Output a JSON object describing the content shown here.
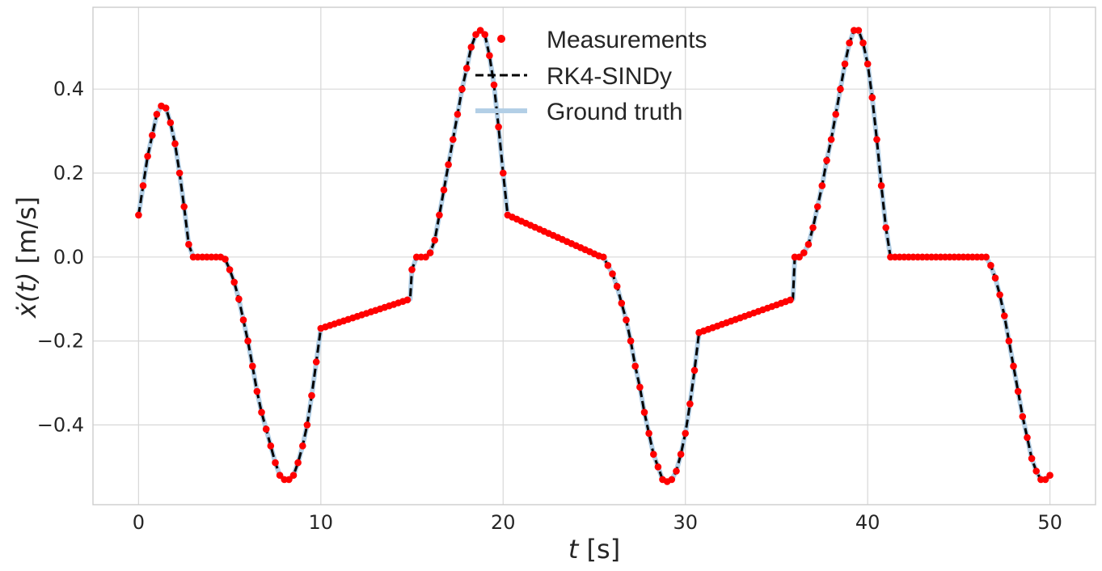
{
  "chart_data": {
    "type": "line",
    "title": "",
    "xlabel": "t [s]",
    "xlabel_parts": {
      "var": "t",
      "unit": " [s]"
    },
    "ylabel": "ẋ(t) [m/s]",
    "ylabel_parts": {
      "var": "ẋ",
      "arg": "(t)",
      "unit": " [m/s]"
    },
    "xlim": [
      -2.5,
      52.5
    ],
    "ylim": [
      -0.59,
      0.595
    ],
    "xticks": [
      0,
      10,
      20,
      30,
      40,
      50
    ],
    "xtick_labels": [
      "0",
      "10",
      "20",
      "30",
      "40",
      "50"
    ],
    "yticks": [
      -0.4,
      -0.2,
      0.0,
      0.2,
      0.4
    ],
    "ytick_labels": [
      "−0.4",
      "−0.2",
      "0.0",
      "0.2",
      "0.4"
    ],
    "grid": true,
    "legend_position": "top-center",
    "series": [
      {
        "name": "Measurements",
        "style": "markers",
        "color": "#ff0000",
        "sample_step": 0.25
      },
      {
        "name": "RK4-SINDy",
        "style": "dashed-line",
        "color": "#000000"
      },
      {
        "name": "Ground truth",
        "style": "solid-line",
        "color": "#b3cfe6"
      }
    ],
    "curve_x": [
      0,
      0.25,
      0.5,
      0.75,
      1.0,
      1.25,
      1.5,
      1.75,
      2.0,
      2.25,
      2.5,
      2.75,
      3.0,
      4.6,
      4.75,
      5.0,
      5.25,
      5.5,
      5.75,
      6.0,
      6.25,
      6.5,
      6.75,
      7.0,
      7.25,
      7.5,
      7.75,
      8.0,
      8.25,
      8.5,
      8.75,
      9.0,
      9.25,
      9.5,
      9.75,
      10.0,
      14.9,
      15.0,
      15.25,
      15.5,
      15.75,
      16.0,
      16.25,
      16.5,
      16.75,
      17.0,
      17.25,
      17.5,
      17.75,
      18.0,
      18.25,
      18.5,
      18.75,
      19.0,
      19.25,
      19.5,
      19.75,
      20.0,
      20.25,
      25.4,
      25.5,
      25.75,
      26.0,
      26.25,
      26.5,
      26.75,
      27.0,
      27.25,
      27.5,
      27.75,
      28.0,
      28.25,
      28.5,
      28.75,
      29.0,
      29.25,
      29.5,
      29.75,
      30.0,
      30.25,
      30.5,
      30.75,
      35.9,
      36.0,
      36.25,
      36.5,
      36.75,
      37.0,
      37.25,
      37.5,
      37.75,
      38.0,
      38.25,
      38.5,
      38.75,
      39.0,
      39.25,
      39.5,
      39.75,
      40.0,
      40.25,
      40.5,
      40.75,
      41.0,
      41.25,
      46.3,
      46.5,
      46.75,
      47.0,
      47.25,
      47.5,
      47.75,
      48.0,
      48.25,
      48.5,
      48.75,
      49.0,
      49.25,
      49.5,
      49.75,
      50.0
    ],
    "curve_y": [
      0.1,
      0.17,
      0.24,
      0.29,
      0.34,
      0.36,
      0.355,
      0.32,
      0.27,
      0.2,
      0.12,
      0.03,
      0.0,
      0.0,
      -0.005,
      -0.03,
      -0.06,
      -0.1,
      -0.15,
      -0.2,
      -0.26,
      -0.32,
      -0.37,
      -0.41,
      -0.45,
      -0.49,
      -0.52,
      -0.53,
      -0.53,
      -0.52,
      -0.49,
      -0.45,
      -0.4,
      -0.33,
      -0.25,
      -0.17,
      -0.1,
      -0.03,
      0.0,
      0.0,
      0.0,
      0.01,
      0.04,
      0.1,
      0.16,
      0.22,
      0.28,
      0.34,
      0.4,
      0.45,
      0.5,
      0.53,
      0.54,
      0.53,
      0.48,
      0.41,
      0.31,
      0.2,
      0.1,
      0.0,
      0.0,
      -0.02,
      -0.04,
      -0.07,
      -0.11,
      -0.15,
      -0.2,
      -0.26,
      -0.31,
      -0.37,
      -0.42,
      -0.47,
      -0.5,
      -0.53,
      -0.535,
      -0.53,
      -0.51,
      -0.47,
      -0.42,
      -0.35,
      -0.27,
      -0.18,
      -0.1,
      0.0,
      0.0,
      0.01,
      0.03,
      0.07,
      0.12,
      0.17,
      0.23,
      0.28,
      0.34,
      0.4,
      0.46,
      0.51,
      0.54,
      0.54,
      0.51,
      0.46,
      0.38,
      0.28,
      0.17,
      0.07,
      0.0,
      0.0,
      0.0,
      -0.02,
      -0.05,
      -0.09,
      -0.14,
      -0.2,
      -0.26,
      -0.32,
      -0.38,
      -0.43,
      -0.48,
      -0.51,
      -0.53,
      -0.53,
      -0.52,
      -0.47
    ]
  }
}
